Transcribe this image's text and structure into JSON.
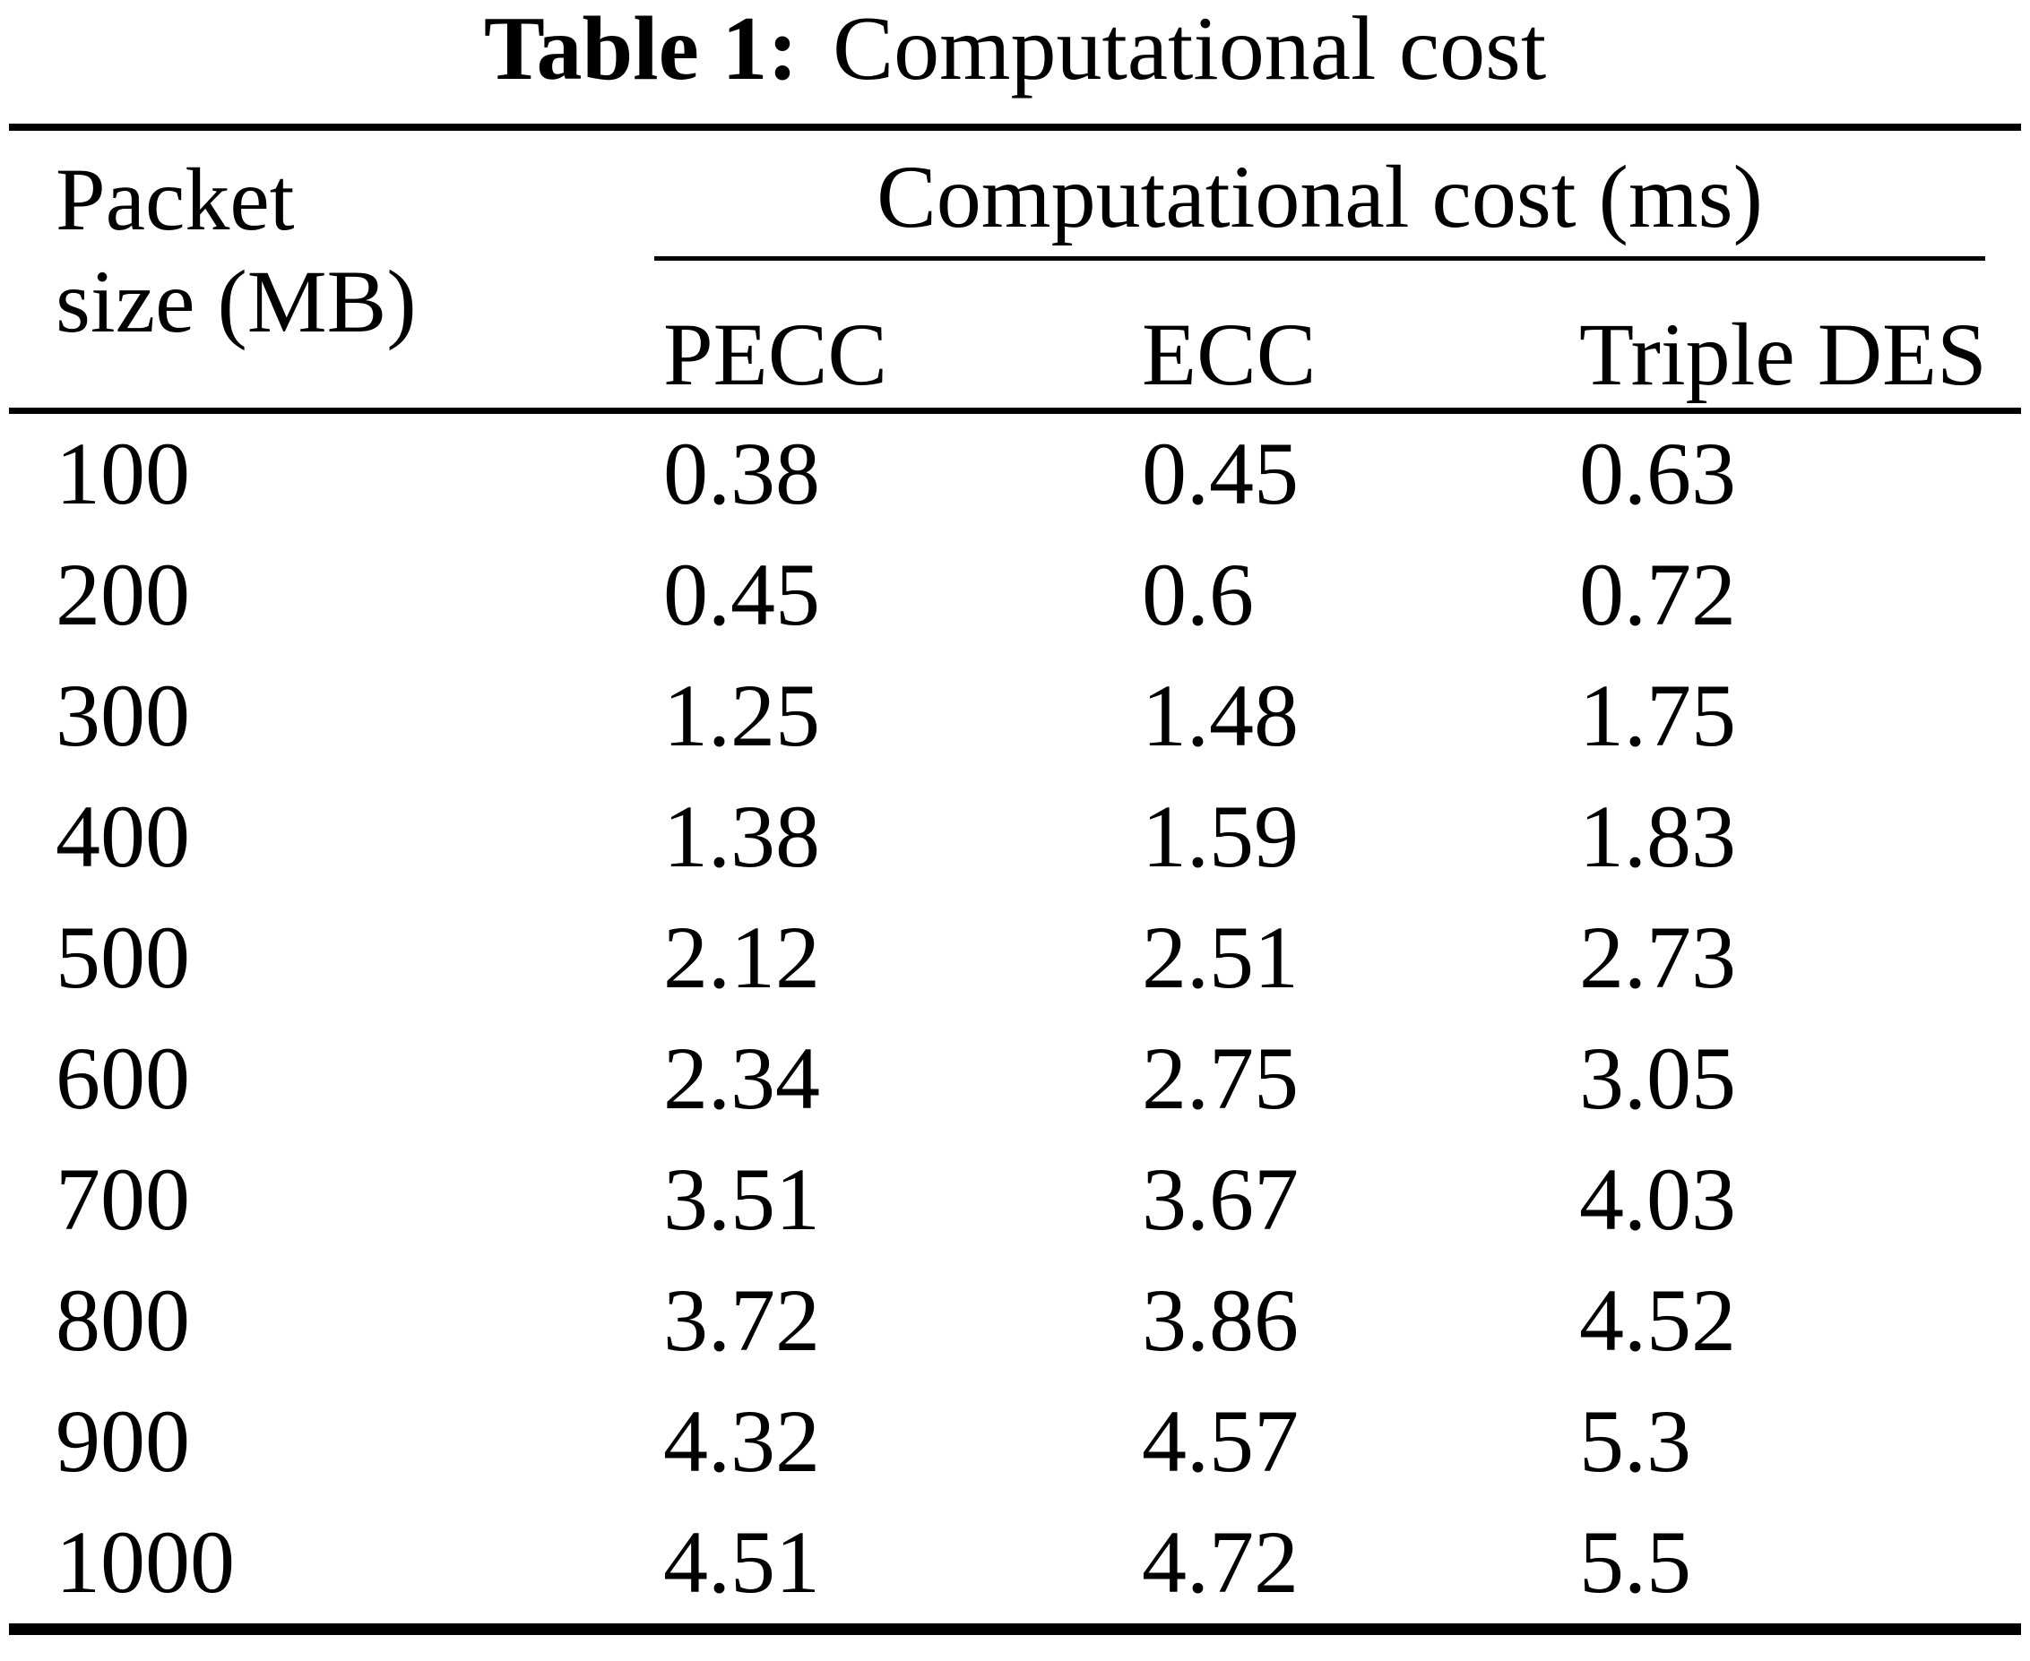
{
  "title": {
    "label": "Table 1:",
    "text": "Computational cost"
  },
  "table": {
    "row_header": {
      "line1": "Packet",
      "line2": "size (MB)"
    },
    "group_header": "Computational cost (ms)",
    "columns": [
      "PECC",
      "ECC",
      "Triple DES"
    ],
    "rows": [
      {
        "packet_size": "100",
        "pecc": "0.38",
        "ecc": "0.45",
        "triple_des": "0.63"
      },
      {
        "packet_size": "200",
        "pecc": "0.45",
        "ecc": "0.6",
        "triple_des": "0.72"
      },
      {
        "packet_size": "300",
        "pecc": "1.25",
        "ecc": "1.48",
        "triple_des": "1.75"
      },
      {
        "packet_size": "400",
        "pecc": "1.38",
        "ecc": "1.59",
        "triple_des": "1.83"
      },
      {
        "packet_size": "500",
        "pecc": "2.12",
        "ecc": "2.51",
        "triple_des": "2.73"
      },
      {
        "packet_size": "600",
        "pecc": "2.34",
        "ecc": "2.75",
        "triple_des": "3.05"
      },
      {
        "packet_size": "700",
        "pecc": "3.51",
        "ecc": "3.67",
        "triple_des": "4.03"
      },
      {
        "packet_size": "800",
        "pecc": "3.72",
        "ecc": "3.86",
        "triple_des": "4.52"
      },
      {
        "packet_size": "900",
        "pecc": "4.32",
        "ecc": "4.57",
        "triple_des": "5.3"
      },
      {
        "packet_size": "1000",
        "pecc": "4.51",
        "ecc": "4.72",
        "triple_des": "5.5"
      }
    ]
  },
  "chart_data": {
    "type": "table",
    "title": "Table 1: Computational cost",
    "columns": [
      "Packet size (MB)",
      "PECC",
      "ECC",
      "Triple DES"
    ],
    "units": "ms",
    "categories": [
      100,
      200,
      300,
      400,
      500,
      600,
      700,
      800,
      900,
      1000
    ],
    "series": [
      {
        "name": "PECC",
        "values": [
          0.38,
          0.45,
          1.25,
          1.38,
          2.12,
          2.34,
          3.51,
          3.72,
          4.32,
          4.51
        ]
      },
      {
        "name": "ECC",
        "values": [
          0.45,
          0.6,
          1.48,
          1.59,
          2.51,
          2.75,
          3.67,
          3.86,
          4.57,
          4.72
        ]
      },
      {
        "name": "Triple DES",
        "values": [
          0.63,
          0.72,
          1.75,
          1.83,
          2.73,
          3.05,
          4.03,
          4.52,
          5.3,
          5.5
        ]
      }
    ]
  }
}
